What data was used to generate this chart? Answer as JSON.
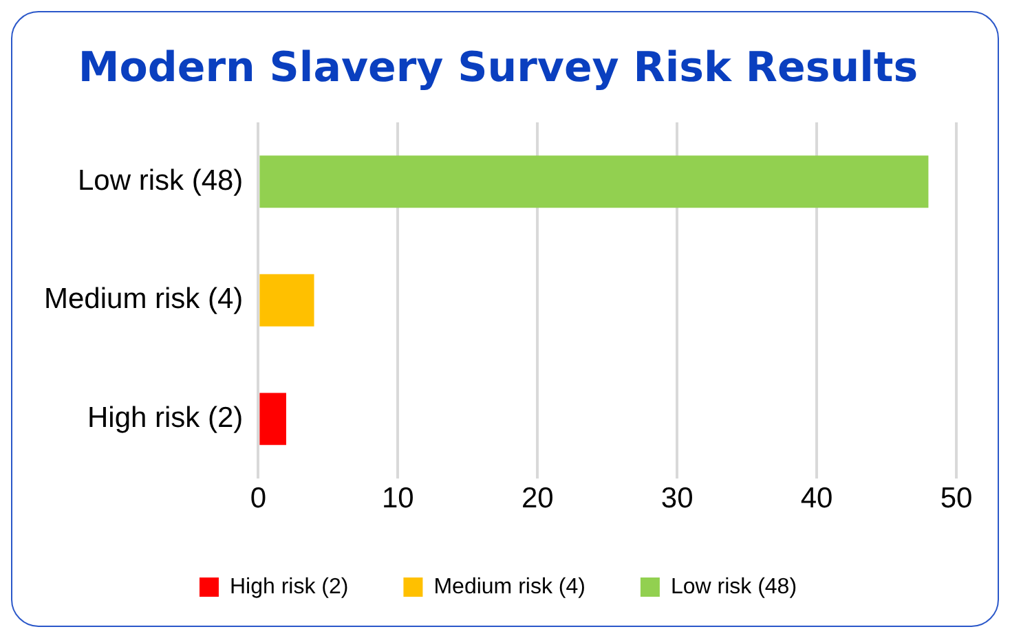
{
  "chart_data": {
    "type": "bar",
    "title": "Modern Slavery Survey Risk Results",
    "orientation": "horizontal",
    "stacked": true,
    "categories": [
      "Low risk (48)",
      "Medium risk (4)",
      "High risk (2)"
    ],
    "series": [
      {
        "name": "High risk (2)",
        "color": "#ff0000",
        "values": [
          null,
          null,
          2
        ]
      },
      {
        "name": "Medium risk (4)",
        "color": "#ffc000",
        "values": [
          null,
          4,
          null
        ]
      },
      {
        "name": "Low risk (48)",
        "color": "#92d050",
        "values": [
          48,
          null,
          null
        ]
      }
    ],
    "xlim": [
      0,
      50
    ],
    "xticks": [
      0,
      10,
      20,
      30,
      40,
      50
    ],
    "grid": "x",
    "legend": "bottom"
  }
}
